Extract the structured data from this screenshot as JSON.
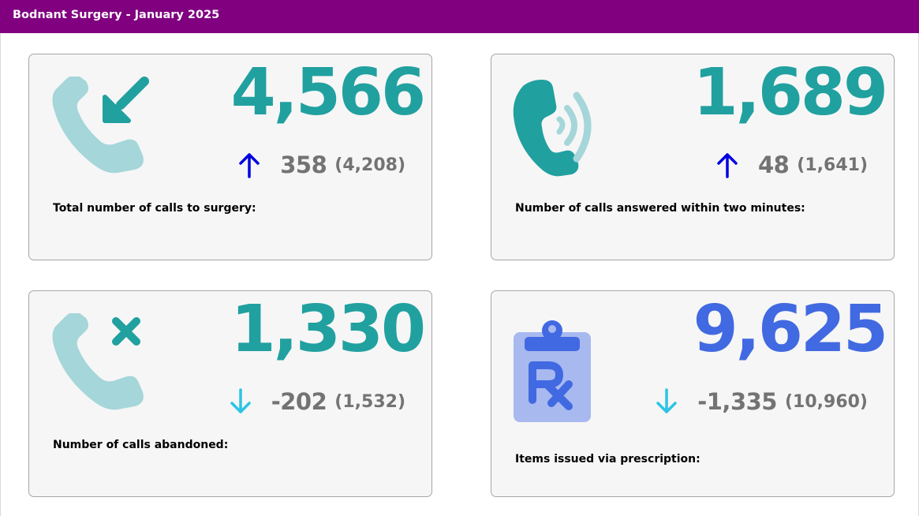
{
  "header": {
    "title": "Bodnant Surgery - January 2025"
  },
  "colors": {
    "header_bg": "#800080",
    "teal": "#21A0A0",
    "light_teal": "#A5D6D9",
    "blue": "#4169E1",
    "light_blue": "#A8B9F0",
    "arrow_up": "#0000E0",
    "arrow_down": "#2CC4E4",
    "delta_grey": "#737373"
  },
  "cards": [
    {
      "icon": "incoming-call-icon",
      "value": "4,566",
      "trend": "up",
      "change": "358",
      "previous": "(4,208)",
      "label": "Total number of calls to surgery:"
    },
    {
      "icon": "phone-ringing-icon",
      "value": "1,689",
      "trend": "up",
      "change": "48",
      "previous": "(1,641)",
      "label": "Number of calls answered within two minutes:"
    },
    {
      "icon": "missed-call-icon",
      "value": "1,330",
      "trend": "down",
      "change": "-202",
      "previous": "(1,532)",
      "label": "Number of calls abandoned:"
    },
    {
      "icon": "prescription-clipboard-icon",
      "value": "9,625",
      "trend": "down",
      "change": "-1,335",
      "previous": "(10,960)",
      "label": "Items issued via prescription:"
    }
  ]
}
